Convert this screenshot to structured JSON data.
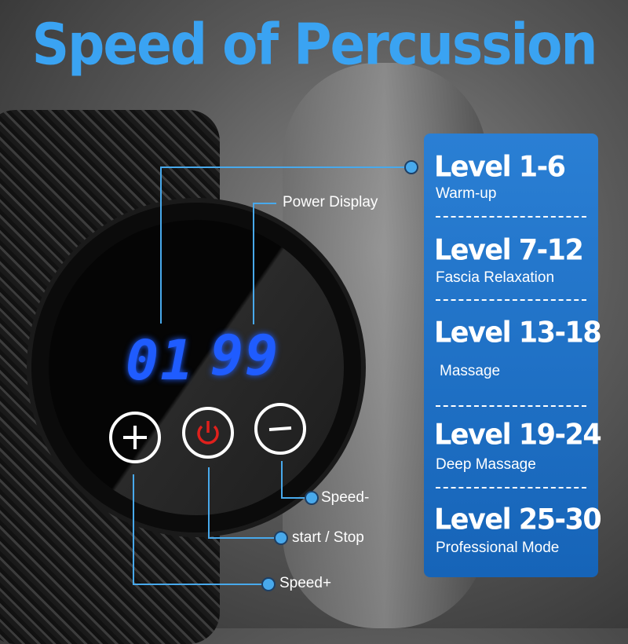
{
  "title": "Speed of Percussion",
  "display": {
    "level": "01",
    "power": "99"
  },
  "callouts": {
    "power_display": "Power Display",
    "speed_minus": "Speed-",
    "start_stop": "start / Stop",
    "speed_plus": "Speed+"
  },
  "levels": [
    {
      "title": "Level 1-6",
      "subtitle": "Warm-up"
    },
    {
      "title": "Level 7-12",
      "subtitle": "Fascia Relaxation"
    },
    {
      "title": "Level 13-18",
      "subtitle": "Massage"
    },
    {
      "title": "Level 19-24",
      "subtitle": "Deep Massage"
    },
    {
      "title": "Level 25-30",
      "subtitle": "Professional Mode"
    }
  ],
  "colors": {
    "title": "#3aa3f2",
    "panel": "#1e6fc4",
    "digits": "#1f5cff",
    "power_icon": "#e0201c",
    "callout": "#48a9ec"
  },
  "icons": [
    "plus-icon",
    "power-icon",
    "minus-icon"
  ]
}
